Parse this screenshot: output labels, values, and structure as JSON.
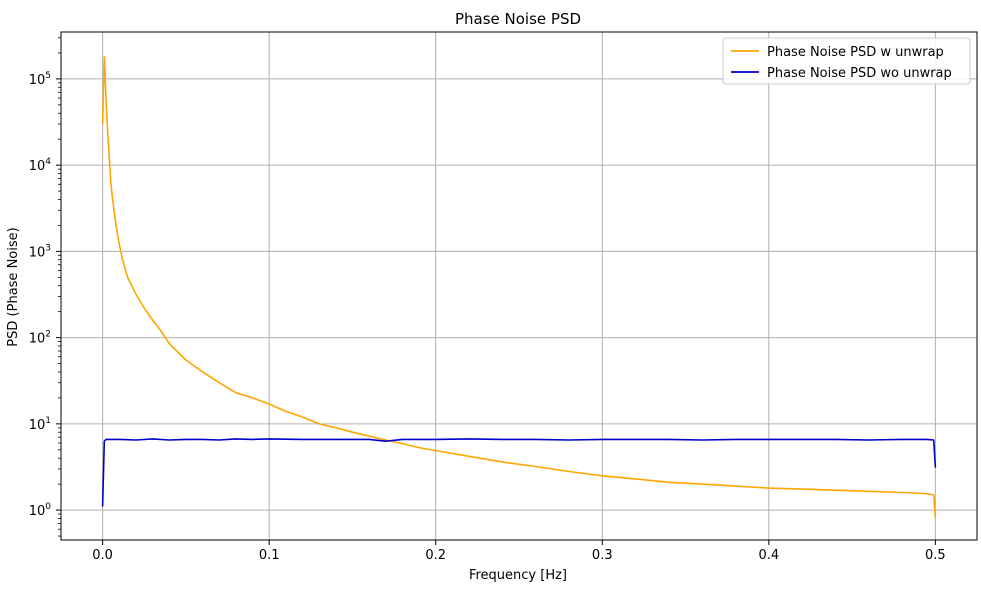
{
  "chart_data": {
    "type": "line",
    "title": "Phase Noise PSD",
    "xlabel": "Frequency [Hz]",
    "ylabel": "PSD (Phase Noise)",
    "yscale": "log",
    "xlim": [
      -0.025,
      0.525
    ],
    "ylim": [
      0.45,
      350000
    ],
    "xticks": [
      0.0,
      0.1,
      0.2,
      0.3,
      0.4,
      0.5
    ],
    "xtick_labels": [
      "0.0",
      "0.1",
      "0.2",
      "0.3",
      "0.4",
      "0.5"
    ],
    "yticks": [
      1,
      10,
      100,
      1000,
      10000,
      100000
    ],
    "ytick_labels": [
      {
        "base": "10",
        "exp": "0"
      },
      {
        "base": "10",
        "exp": "1"
      },
      {
        "base": "10",
        "exp": "2"
      },
      {
        "base": "10",
        "exp": "3"
      },
      {
        "base": "10",
        "exp": "4"
      },
      {
        "base": "10",
        "exp": "5"
      }
    ],
    "grid": true,
    "legend_position": "upper-right",
    "series": [
      {
        "name": "Phase Noise PSD w unwrap",
        "color": "#ffa500",
        "x": [
          0.0,
          0.001,
          0.002,
          0.003,
          0.004,
          0.005,
          0.006,
          0.008,
          0.01,
          0.012,
          0.015,
          0.02,
          0.025,
          0.03,
          0.035,
          0.04,
          0.05,
          0.06,
          0.07,
          0.08,
          0.09,
          0.1,
          0.11,
          0.12,
          0.13,
          0.14,
          0.15,
          0.16,
          0.17,
          0.18,
          0.19,
          0.2,
          0.22,
          0.24,
          0.26,
          0.28,
          0.3,
          0.32,
          0.34,
          0.36,
          0.38,
          0.4,
          0.42,
          0.44,
          0.46,
          0.48,
          0.495,
          0.499,
          0.5
        ],
        "y": [
          30000,
          180000,
          60000,
          25000,
          12000,
          6000,
          4000,
          2000,
          1200,
          800,
          500,
          320,
          220,
          160,
          120,
          85,
          55,
          40,
          30,
          23,
          20,
          17,
          14,
          12,
          10,
          9,
          8,
          7.2,
          6.5,
          5.9,
          5.3,
          4.9,
          4.2,
          3.6,
          3.2,
          2.8,
          2.5,
          2.3,
          2.1,
          2.0,
          1.9,
          1.8,
          1.75,
          1.7,
          1.65,
          1.6,
          1.55,
          1.5,
          0.8
        ]
      },
      {
        "name": "Phase Noise PSD wo unwrap",
        "color": "#0000cc",
        "x": [
          0.0,
          0.001,
          0.002,
          0.01,
          0.02,
          0.03,
          0.04,
          0.05,
          0.06,
          0.07,
          0.08,
          0.09,
          0.1,
          0.12,
          0.14,
          0.16,
          0.17,
          0.18,
          0.2,
          0.22,
          0.24,
          0.26,
          0.28,
          0.3,
          0.32,
          0.34,
          0.36,
          0.38,
          0.4,
          0.42,
          0.44,
          0.46,
          0.48,
          0.495,
          0.499,
          0.5
        ],
        "y": [
          1.1,
          6.3,
          6.6,
          6.6,
          6.5,
          6.7,
          6.5,
          6.6,
          6.6,
          6.5,
          6.7,
          6.6,
          6.7,
          6.6,
          6.6,
          6.6,
          6.3,
          6.6,
          6.6,
          6.7,
          6.6,
          6.6,
          6.5,
          6.6,
          6.6,
          6.6,
          6.5,
          6.6,
          6.6,
          6.6,
          6.6,
          6.5,
          6.6,
          6.6,
          6.5,
          3.1
        ]
      }
    ]
  }
}
